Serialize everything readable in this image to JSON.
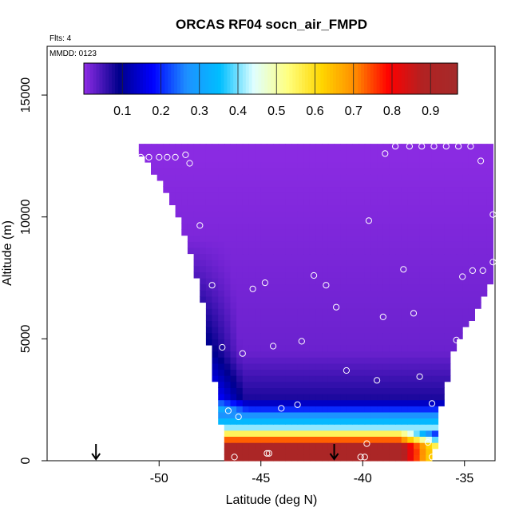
{
  "chart_data": {
    "type": "heatmap",
    "title": "ORCAS RF04 socn_air_FMPD",
    "flights_label": "Flts: 4",
    "date_label": "MMDD: 0123",
    "xlabel": "Latitude (deg N)",
    "ylabel": "Altitude (m)",
    "xlim": [
      -55.5,
      -33.5
    ],
    "ylim": [
      0,
      17000
    ],
    "x_ticks": [
      -50,
      -45,
      -40,
      -35
    ],
    "x_tick_labels": [
      "-50",
      "-45",
      "-40",
      "-35"
    ],
    "y_ticks": [
      0,
      5000,
      10000,
      15000
    ],
    "y_tick_labels": [
      "0",
      "5000",
      "10000",
      "15000"
    ],
    "colorbar": {
      "range": [
        0,
        0.97
      ],
      "ticks": [
        0.1,
        0.2,
        0.3,
        0.4,
        0.5,
        0.6,
        0.7,
        0.8,
        0.9
      ],
      "tick_labels": [
        "0.1",
        "0.2",
        "0.3",
        "0.4",
        "0.5",
        "0.6",
        "0.7",
        "0.8",
        "0.9"
      ],
      "colors": [
        "#8a2be2",
        "#00008b",
        "#0000ff",
        "#1e90ff",
        "#00bfff",
        "#e0ffff",
        "#ffff80",
        "#ffd700",
        "#ff8c00",
        "#ff0000",
        "#b22222",
        "#a52a2a"
      ]
    },
    "field": {
      "lat_range": [
        -50.9,
        -33.5
      ],
      "alt_range": [
        0,
        12900
      ],
      "left_boundary": [
        [
          -50.9,
          12500
        ],
        [
          -50.5,
          12200
        ],
        [
          -49.5,
          10800
        ],
        [
          -48.5,
          8800
        ],
        [
          -47.8,
          6200
        ],
        [
          -47.3,
          3500
        ],
        [
          -47.0,
          2000
        ],
        [
          -46.9,
          1000
        ],
        [
          -46.8,
          0
        ]
      ],
      "right_boundary": [
        [
          -33.5,
          10200
        ],
        [
          -33.5,
          7600
        ],
        [
          -34.5,
          6100
        ],
        [
          -35.5,
          4600
        ],
        [
          -36.0,
          2800
        ],
        [
          -36.4,
          1200
        ],
        [
          -36.5,
          0
        ]
      ]
    },
    "observations": [
      [
        -50.9,
        12450
      ],
      [
        -50.5,
        12450
      ],
      [
        -50.0,
        12450
      ],
      [
        -49.6,
        12450
      ],
      [
        -49.2,
        12450
      ],
      [
        -48.7,
        12550
      ],
      [
        -48.5,
        12200
      ],
      [
        -38.9,
        12600
      ],
      [
        -38.4,
        12900
      ],
      [
        -37.7,
        12900
      ],
      [
        -37.1,
        12900
      ],
      [
        -36.5,
        12900
      ],
      [
        -35.9,
        12900
      ],
      [
        -35.3,
        12900
      ],
      [
        -34.7,
        12900
      ],
      [
        -34.2,
        12300
      ],
      [
        -33.6,
        10100
      ],
      [
        -39.7,
        9850
      ],
      [
        -48.0,
        9650
      ],
      [
        -38.0,
        7850
      ],
      [
        -35.1,
        7550
      ],
      [
        -34.6,
        7800
      ],
      [
        -34.1,
        7800
      ],
      [
        -33.6,
        8150
      ],
      [
        -47.4,
        7200
      ],
      [
        -45.4,
        7050
      ],
      [
        -44.8,
        7300
      ],
      [
        -42.4,
        7600
      ],
      [
        -41.8,
        7200
      ],
      [
        -41.3,
        6300
      ],
      [
        -39.0,
        5900
      ],
      [
        -37.5,
        6050
      ],
      [
        -35.4,
        4950
      ],
      [
        -46.9,
        4650
      ],
      [
        -45.9,
        4400
      ],
      [
        -44.4,
        4700
      ],
      [
        -43.0,
        4900
      ],
      [
        -40.8,
        3700
      ],
      [
        -39.3,
        3300
      ],
      [
        -37.2,
        3450
      ],
      [
        -36.6,
        2350
      ],
      [
        -46.6,
        2050
      ],
      [
        -46.1,
        1800
      ],
      [
        -44.0,
        2150
      ],
      [
        -43.2,
        2300
      ],
      [
        -39.8,
        700
      ],
      [
        -36.8,
        750
      ],
      [
        -46.3,
        150
      ],
      [
        -44.7,
        300
      ],
      [
        -44.6,
        300
      ],
      [
        -40.1,
        150
      ],
      [
        -39.9,
        150
      ],
      [
        -36.6,
        150
      ],
      [
        -36.4,
        150
      ]
    ],
    "markers": [
      {
        "lat": -53.1,
        "type": "down-arrow"
      },
      {
        "lat": -41.4,
        "type": "down-arrow"
      }
    ]
  }
}
